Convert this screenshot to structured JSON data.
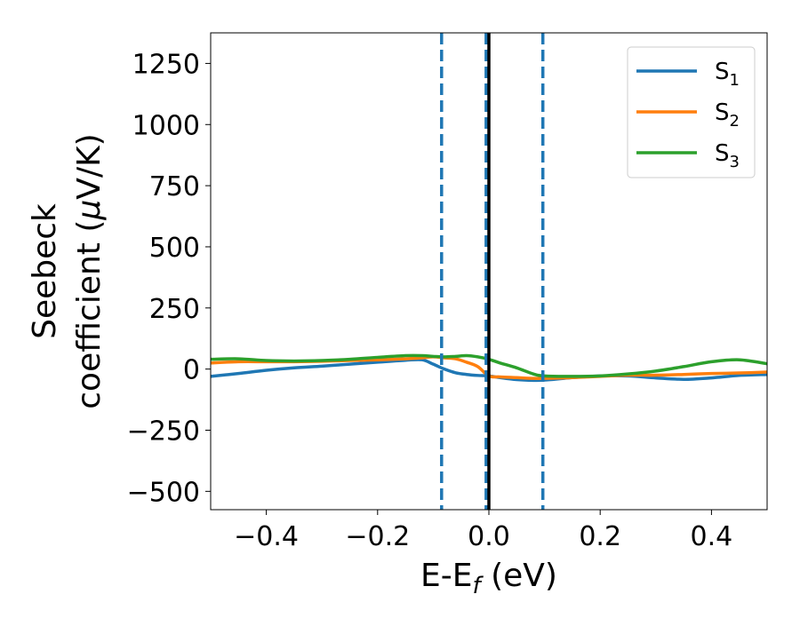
{
  "chart_data": {
    "type": "line",
    "title": "",
    "xlabel": "E-E",
    "xlabel_sub": "f",
    "xlabel_unit": " (eV)",
    "ylabel_line1": "Seebeck",
    "ylabel_line2": "coefficient  (",
    "ylabel_mu": "μ",
    "ylabel_unit": "V/K)",
    "xlim": [
      -0.5,
      0.5
    ],
    "ylim": [
      -575,
      1375
    ],
    "xticks": [
      -0.4,
      -0.2,
      0.0,
      0.2,
      0.4
    ],
    "xtick_labels": [
      "−0.4",
      "−0.2",
      "0.0",
      "0.2",
      "0.4"
    ],
    "yticks": [
      -500,
      -250,
      0,
      250,
      500,
      750,
      1000,
      1250
    ],
    "ytick_labels": [
      "−500",
      "−250",
      "0",
      "250",
      "500",
      "750",
      "1000",
      "1250"
    ],
    "grid": false,
    "legend_position": "top-right",
    "vertical_lines": [
      {
        "x": -0.085,
        "style": "dashed",
        "color": "#1f77b4"
      },
      {
        "x": -0.005,
        "style": "dashed",
        "color": "#1f77b4"
      },
      {
        "x": 0.0,
        "style": "solid",
        "color": "#000000"
      },
      {
        "x": 0.097,
        "style": "dashed",
        "color": "#1f77b4"
      }
    ],
    "series": [
      {
        "name": "S",
        "name_sub": "1",
        "color": "#1f77b4",
        "x": [
          -0.5,
          -0.45,
          -0.4,
          -0.35,
          -0.3,
          -0.25,
          -0.2,
          -0.15,
          -0.12,
          -0.1,
          -0.08,
          -0.06,
          -0.04,
          -0.02,
          0.0,
          0.02,
          0.05,
          0.08,
          0.1,
          0.15,
          0.2,
          0.25,
          0.3,
          0.35,
          0.4,
          0.45,
          0.5
        ],
        "y": [
          -30,
          -18,
          -5,
          5,
          12,
          20,
          28,
          36,
          38,
          20,
          0,
          -15,
          -22,
          -26,
          -28,
          -35,
          -43,
          -46,
          -45,
          -35,
          -28,
          -28,
          -36,
          -42,
          -36,
          -26,
          -22
        ]
      },
      {
        "name": "S",
        "name_sub": "2",
        "color": "#ff7f0e",
        "x": [
          -0.5,
          -0.45,
          -0.4,
          -0.35,
          -0.3,
          -0.25,
          -0.2,
          -0.15,
          -0.12,
          -0.1,
          -0.08,
          -0.06,
          -0.04,
          -0.02,
          0.0,
          0.02,
          0.05,
          0.08,
          0.1,
          0.15,
          0.2,
          0.25,
          0.3,
          0.35,
          0.4,
          0.45,
          0.5
        ],
        "y": [
          25,
          30,
          30,
          30,
          32,
          35,
          38,
          42,
          46,
          50,
          46,
          42,
          28,
          10,
          -28,
          -32,
          -35,
          -38,
          -38,
          -35,
          -30,
          -25,
          -25,
          -22,
          -18,
          -16,
          -12
        ]
      },
      {
        "name": "S",
        "name_sub": "3",
        "color": "#2ca02c",
        "x": [
          -0.5,
          -0.45,
          -0.4,
          -0.35,
          -0.3,
          -0.25,
          -0.2,
          -0.15,
          -0.12,
          -0.1,
          -0.08,
          -0.06,
          -0.04,
          -0.02,
          0.0,
          0.02,
          0.05,
          0.08,
          0.1,
          0.15,
          0.2,
          0.25,
          0.3,
          0.35,
          0.4,
          0.45,
          0.5
        ],
        "y": [
          40,
          42,
          35,
          33,
          35,
          40,
          48,
          55,
          55,
          52,
          50,
          52,
          55,
          50,
          40,
          25,
          5,
          -20,
          -28,
          -30,
          -28,
          -20,
          -8,
          10,
          30,
          38,
          22
        ]
      }
    ]
  }
}
